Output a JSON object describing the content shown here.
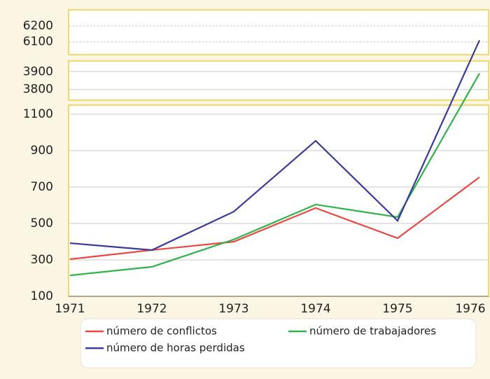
{
  "chart_data": {
    "type": "line",
    "categories": [
      "1971",
      "1972",
      "1973",
      "1974",
      "1975",
      "1976"
    ],
    "y_segments": [
      {
        "ylim": [
          6020,
          6300
        ],
        "yticks": [
          6100,
          6200
        ]
      },
      {
        "ylim": [
          3740,
          3960
        ],
        "yticks": [
          3800,
          3900
        ]
      },
      {
        "ylim": [
          100,
          1150
        ],
        "yticks": [
          100,
          300,
          500,
          700,
          900,
          1100
        ]
      }
    ],
    "grid": true,
    "series": [
      {
        "name": "número de conflictos",
        "color": "#e8483f",
        "values": [
          304,
          354,
          400,
          585,
          419,
          754
        ]
      },
      {
        "name": "número de trabajadores",
        "color": "#2db34a",
        "values": [
          215,
          262,
          412,
          604,
          535,
          3890
        ]
      },
      {
        "name": "número de horas perdidas",
        "color": "#3a3a9a",
        "values": [
          392,
          354,
          565,
          954,
          515,
          6110
        ]
      }
    ]
  }
}
